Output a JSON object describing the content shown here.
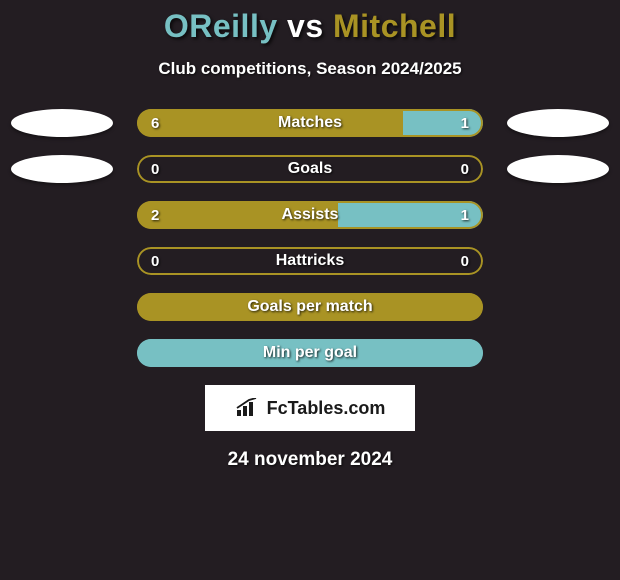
{
  "title": {
    "player1": "OReilly",
    "vs": "vs",
    "player2": "Mitchell",
    "color_player1": "#77c0c3",
    "color_vs": "#ffffff",
    "color_player2": "#a99324"
  },
  "subtitle": "Club competitions, Season 2024/2025",
  "colors": {
    "left_fill": "#a99324",
    "right_fill": "#77c0c3",
    "border_default": "#a99324",
    "background": "#231d22"
  },
  "bars": [
    {
      "label": "Matches",
      "left_value": "6",
      "right_value": "1",
      "left_pct": 77,
      "right_pct": 23,
      "show_values": true,
      "left_oval": "white",
      "right_oval": "white",
      "border_color": "#a99324"
    },
    {
      "label": "Goals",
      "left_value": "0",
      "right_value": "0",
      "left_pct": 0,
      "right_pct": 0,
      "show_values": true,
      "left_oval": "white",
      "right_oval": "white",
      "border_color": "#a99324"
    },
    {
      "label": "Assists",
      "left_value": "2",
      "right_value": "1",
      "left_pct": 58,
      "right_pct": 42,
      "show_values": true,
      "left_oval": "blank",
      "right_oval": "blank",
      "border_color": "#a99324"
    },
    {
      "label": "Hattricks",
      "left_value": "0",
      "right_value": "0",
      "left_pct": 0,
      "right_pct": 0,
      "show_values": true,
      "left_oval": "blank",
      "right_oval": "blank",
      "border_color": "#a99324"
    },
    {
      "label": "Goals per match",
      "left_value": "",
      "right_value": "",
      "left_pct": 100,
      "right_pct": 0,
      "show_values": false,
      "left_oval": "blank",
      "right_oval": "blank",
      "border_color": "#a99324"
    },
    {
      "label": "Min per goal",
      "left_value": "",
      "right_value": "",
      "left_pct": 0,
      "right_pct": 100,
      "show_values": false,
      "left_oval": "blank",
      "right_oval": "blank",
      "border_color": "#77c0c3"
    }
  ],
  "logo": {
    "text": "FcTables.com",
    "text_color": "#1a1a1a",
    "background": "#ffffff"
  },
  "date": "24 november 2024"
}
